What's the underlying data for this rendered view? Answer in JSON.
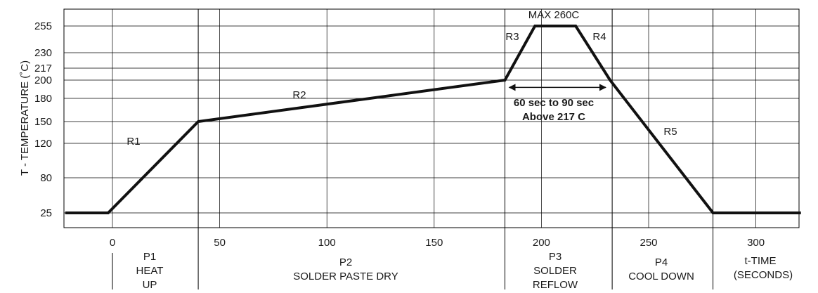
{
  "chart_data": {
    "type": "line",
    "ylabel": "T - TEMPERATURE (˚C)",
    "x_ticks": [
      0,
      50,
      100,
      150,
      200,
      250,
      300
    ],
    "y_ticks": [
      25,
      80,
      120,
      150,
      180,
      200,
      217,
      230,
      255
    ],
    "xlim": [
      -22,
      321
    ],
    "series": [
      {
        "x": [
          -22,
          -2,
          40,
          183,
          197,
          216,
          232,
          280,
          321
        ],
        "y": [
          25,
          25,
          150,
          200,
          255,
          255,
          200,
          25,
          25
        ]
      }
    ],
    "x_gridlines": [
      0,
      50,
      100,
      150,
      200,
      250,
      300
    ],
    "phase_dividers": [
      40,
      183,
      233,
      280
    ],
    "x_axis_extra_label": [
      "t-TIME",
      "(SECONDS)"
    ],
    "phases": [
      {
        "id": "P1",
        "lines": [
          "P1",
          "HEAT",
          "UP"
        ]
      },
      {
        "id": "P2",
        "lines": [
          "P2",
          "SOLDER PASTE DRY"
        ]
      },
      {
        "id": "P3",
        "lines": [
          "P3",
          "SOLDER",
          "REFLOW"
        ]
      },
      {
        "id": "P4",
        "lines": [
          "P4",
          "COOL DOWN"
        ]
      }
    ],
    "rate_labels": [
      "R1",
      "R2",
      "R3",
      "R4",
      "R5"
    ],
    "annotations": {
      "max": "MAX 260C",
      "window_line1": "60 sec to 90 sec",
      "window_line2": "Above 217 C"
    },
    "window_arrow": {
      "x_start": 185,
      "x_end": 230,
      "y": 192
    },
    "colors": {
      "line": "#111111",
      "grid": "#000000"
    }
  }
}
